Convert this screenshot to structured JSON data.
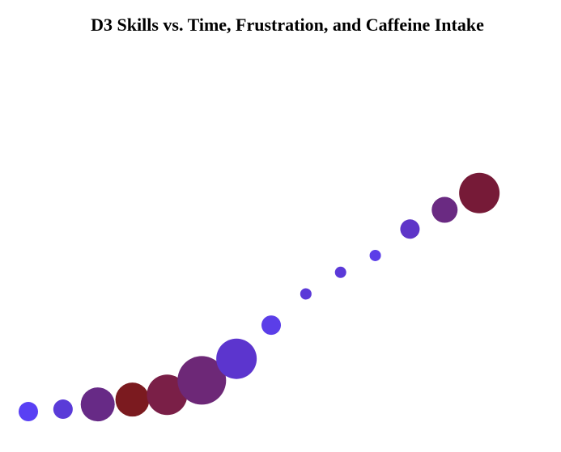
{
  "chart_data": {
    "type": "scatter",
    "title": "D3 Skills vs. Time, Frustration, and Caffeine Intake",
    "xlabel": "",
    "ylabel": "",
    "axes_visible": false,
    "grid": false,
    "xlim": [
      1,
      15
    ],
    "ylim": [
      0,
      100
    ],
    "points": [
      {
        "x": 1,
        "y": 1,
        "size": 12,
        "color": "#5940f4"
      },
      {
        "x": 2,
        "y": 2,
        "size": 12,
        "color": "#5a3bd8"
      },
      {
        "x": 3,
        "y": 4,
        "size": 21,
        "color": "#672a86"
      },
      {
        "x": 4,
        "y": 6,
        "size": 21,
        "color": "#7b1a1f"
      },
      {
        "x": 5,
        "y": 8,
        "size": 25,
        "color": "#7a1f47"
      },
      {
        "x": 6,
        "y": 14,
        "size": 30,
        "color": "#6d2877"
      },
      {
        "x": 7,
        "y": 23,
        "size": 25,
        "color": "#5c35ce"
      },
      {
        "x": 8,
        "y": 37,
        "size": 12,
        "color": "#5b3ee8"
      },
      {
        "x": 9,
        "y": 50,
        "size": 7,
        "color": "#5b39d8"
      },
      {
        "x": 10,
        "y": 59,
        "size": 7,
        "color": "#5b39d8"
      },
      {
        "x": 11,
        "y": 66,
        "size": 7,
        "color": "#5b3ee8"
      },
      {
        "x": 12,
        "y": 77,
        "size": 12,
        "color": "#5e35c8"
      },
      {
        "x": 13,
        "y": 85,
        "size": 16,
        "color": "#6a2a82"
      },
      {
        "x": 14,
        "y": 92,
        "size": 25,
        "color": "#761a37"
      }
    ]
  }
}
